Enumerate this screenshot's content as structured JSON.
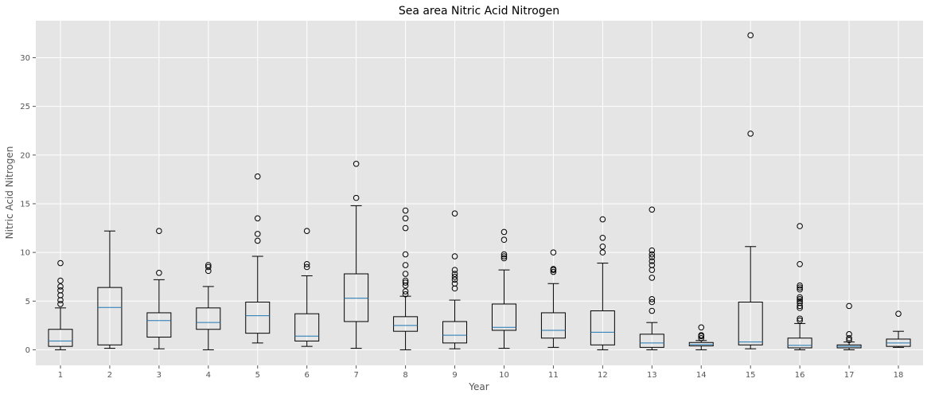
{
  "chart_data": {
    "type": "box",
    "title": "Sea area Nitric Acid Nitrogen",
    "xlabel": "Year",
    "ylabel": "Nitric Acid Nitrogen",
    "ylim": [
      -1.6,
      33.8
    ],
    "yticks": [
      0,
      5,
      10,
      15,
      20,
      25,
      30
    ],
    "grid": true,
    "colors": {
      "background": "#e5e5e5",
      "grid": "#ffffff",
      "box": "#000000",
      "median": "#1f77b4"
    },
    "categories": [
      "1",
      "2",
      "3",
      "4",
      "5",
      "6",
      "7",
      "8",
      "9",
      "10",
      "11",
      "12",
      "13",
      "14",
      "15",
      "16",
      "17",
      "18"
    ],
    "boxes": [
      {
        "label": "1",
        "whislo": 0.0,
        "q1": 0.35,
        "med": 0.9,
        "q3": 2.1,
        "whishi": 4.3,
        "fliers": [
          4.7,
          5.1,
          5.6,
          6.1,
          6.5,
          7.1,
          8.9
        ]
      },
      {
        "label": "2",
        "whislo": 0.15,
        "q1": 0.5,
        "med": 4.35,
        "q3": 6.4,
        "whishi": 12.2,
        "fliers": []
      },
      {
        "label": "3",
        "whislo": 0.1,
        "q1": 1.3,
        "med": 3.0,
        "q3": 3.8,
        "whishi": 7.2,
        "fliers": [
          7.9,
          12.2
        ]
      },
      {
        "label": "4",
        "whislo": 0.0,
        "q1": 2.1,
        "med": 2.8,
        "q3": 4.3,
        "whishi": 6.5,
        "fliers": [
          8.1,
          8.5,
          8.7
        ]
      },
      {
        "label": "5",
        "whislo": 0.7,
        "q1": 1.7,
        "med": 3.5,
        "q3": 4.9,
        "whishi": 9.6,
        "fliers": [
          11.2,
          11.9,
          13.5,
          17.8
        ]
      },
      {
        "label": "6",
        "whislo": 0.35,
        "q1": 0.9,
        "med": 1.4,
        "q3": 3.7,
        "whishi": 7.6,
        "fliers": [
          8.5,
          8.8,
          12.2
        ]
      },
      {
        "label": "7",
        "whislo": 0.15,
        "q1": 2.9,
        "med": 5.3,
        "q3": 7.8,
        "whishi": 14.8,
        "fliers": [
          15.6,
          19.1
        ]
      },
      {
        "label": "8",
        "whislo": 0.0,
        "q1": 1.9,
        "med": 2.5,
        "q3": 3.4,
        "whishi": 5.5,
        "fliers": [
          5.7,
          6.0,
          6.6,
          6.9,
          7.1,
          7.8,
          8.7,
          9.8,
          12.5,
          13.5,
          14.3
        ]
      },
      {
        "label": "9",
        "whislo": 0.1,
        "q1": 0.7,
        "med": 1.5,
        "q3": 2.9,
        "whishi": 5.1,
        "fliers": [
          6.3,
          6.8,
          7.2,
          7.5,
          7.8,
          8.2,
          9.6,
          14.0
        ]
      },
      {
        "label": "10",
        "whislo": 0.15,
        "q1": 2.0,
        "med": 2.3,
        "q3": 4.7,
        "whishi": 8.2,
        "fliers": [
          9.4,
          9.6,
          9.8,
          11.3,
          12.1
        ]
      },
      {
        "label": "11",
        "whislo": 0.25,
        "q1": 1.2,
        "med": 2.0,
        "q3": 3.8,
        "whishi": 6.8,
        "fliers": [
          8.0,
          8.2,
          8.3,
          10.0
        ]
      },
      {
        "label": "12",
        "whislo": 0.0,
        "q1": 0.5,
        "med": 1.8,
        "q3": 4.0,
        "whishi": 8.9,
        "fliers": [
          10.0,
          10.6,
          11.5,
          13.4
        ]
      },
      {
        "label": "13",
        "whislo": 0.0,
        "q1": 0.25,
        "med": 0.7,
        "q3": 1.6,
        "whishi": 2.8,
        "fliers": [
          4.0,
          4.9,
          5.2,
          7.4,
          8.2,
          8.7,
          9.1,
          9.5,
          9.8,
          10.2,
          14.4
        ]
      },
      {
        "label": "14",
        "whislo": 0.0,
        "q1": 0.4,
        "med": 0.55,
        "q3": 0.75,
        "whishi": 0.95,
        "fliers": [
          1.2,
          1.4,
          1.5,
          2.3
        ]
      },
      {
        "label": "15",
        "whislo": 0.1,
        "q1": 0.5,
        "med": 0.8,
        "q3": 4.9,
        "whishi": 10.6,
        "fliers": [
          22.2,
          32.3
        ]
      },
      {
        "label": "16",
        "whislo": 0.0,
        "q1": 0.2,
        "med": 0.45,
        "q3": 1.2,
        "whishi": 2.7,
        "fliers": [
          3.0,
          3.2,
          4.3,
          4.5,
          4.8,
          5.0,
          5.2,
          5.4,
          6.2,
          6.4,
          6.6,
          8.8,
          12.7
        ]
      },
      {
        "label": "17",
        "whislo": 0.0,
        "q1": 0.2,
        "med": 0.35,
        "q3": 0.5,
        "whishi": 0.8,
        "fliers": [
          1.0,
          1.2,
          1.6,
          4.5
        ]
      },
      {
        "label": "18",
        "whislo": 0.25,
        "q1": 0.35,
        "med": 0.7,
        "q3": 1.1,
        "whishi": 1.9,
        "fliers": [
          3.7
        ]
      }
    ]
  }
}
